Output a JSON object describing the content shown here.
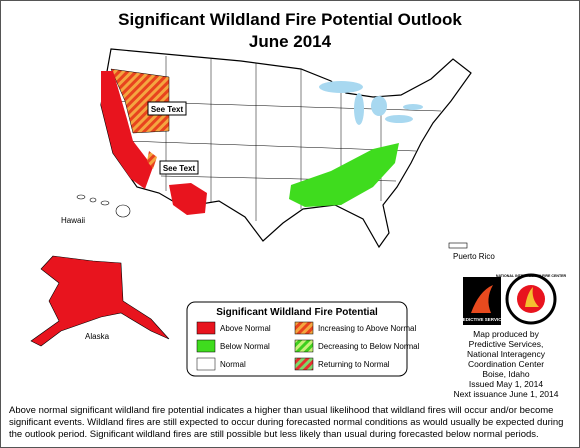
{
  "header": {
    "title": "Significant Wildland Fire Potential Outlook",
    "subtitle": "June 2014"
  },
  "map_labels": {
    "see_text_1": "See Text",
    "see_text_2": "See Text",
    "hawaii": "Hawaii",
    "alaska": "Alaska",
    "puerto_rico": "Puerto Rico"
  },
  "legend": {
    "title": "Significant Wildland Fire Potential",
    "items": [
      "Above Normal",
      "Below Normal",
      "Normal",
      "Increasing to Above Normal",
      "Decreasing to Below Normal",
      "Returning to Normal"
    ]
  },
  "logos": {
    "predictive": "PREDICTIVE SERVICES",
    "nifc": "NATIONAL INTERAGENCY FIRE CENTER"
  },
  "credits": [
    "Map produced by",
    "Predictive Services,",
    "National Interagency",
    "Coordination Center",
    "Boise, Idaho",
    "Issued May 1, 2014",
    "Next issuance June 1, 2014"
  ],
  "footer": "Above normal significant wildland fire potential indicates a higher than usual likelihood that wildland fires will occur and/or become significant events.  Wildland fires are still expected to occur during forecasted normal conditions as would usually be expected during the outlook period.  Significant wildland fires are still possible but less likely than usual during forecasted below normal periods."
}
